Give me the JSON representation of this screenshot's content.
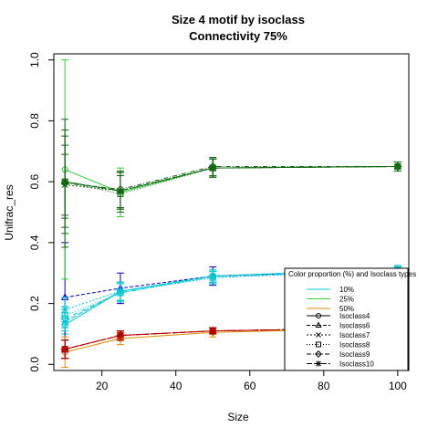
{
  "chart_data": {
    "type": "line",
    "title": "Size 4 motif by isoclass",
    "subtitle": "Connectivity 75%",
    "xlabel": "Size",
    "ylabel": "Unifrac_res",
    "xlim": [
      7,
      103
    ],
    "ylim": [
      -0.02,
      1.02
    ],
    "x_ticks": [
      20,
      40,
      60,
      80,
      100
    ],
    "y_ticks": [
      0.0,
      0.2,
      0.4,
      0.6,
      0.8,
      1.0
    ],
    "x_tick_labels": [
      "20",
      "40",
      "60",
      "80",
      "100"
    ],
    "y_tick_labels": [
      "0.0",
      "0.2",
      "0.4",
      "0.6",
      "0.8",
      "1.0"
    ],
    "x": [
      10,
      25,
      50,
      100
    ],
    "colors": {
      "10%": "#00c8d2",
      "25%": "#22bb22",
      "50%": "#e07000"
    },
    "series": [
      {
        "proportion": "10%",
        "isoclass": "Isoclass4",
        "values": [
          0.13,
          0.24,
          0.29,
          0.31
        ],
        "err": [
          0.03,
          0.03,
          0.02,
          0.01
        ],
        "color": "#00c8d2"
      },
      {
        "proportion": "10%",
        "isoclass": "Isoclass6",
        "values": [
          0.22,
          0.25,
          0.29,
          0.31
        ],
        "err": [
          0.18,
          0.05,
          0.03,
          0.01
        ],
        "color": "#0000cc"
      },
      {
        "proportion": "10%",
        "isoclass": "Isoclass7",
        "values": [
          0.18,
          0.24,
          0.285,
          0.31
        ],
        "err": [
          0.04,
          0.03,
          0.02,
          0.01
        ],
        "color": "#00c8d2"
      },
      {
        "proportion": "10%",
        "isoclass": "Isoclass8",
        "values": [
          0.16,
          0.235,
          0.285,
          0.31
        ],
        "err": [
          0.03,
          0.03,
          0.02,
          0.01
        ],
        "color": "#00c8d2"
      },
      {
        "proportion": "10%",
        "isoclass": "Isoclass9",
        "values": [
          0.15,
          0.235,
          0.29,
          0.31
        ],
        "err": [
          0.03,
          0.03,
          0.02,
          0.01
        ],
        "color": "#00c8d2"
      },
      {
        "proportion": "10%",
        "isoclass": "Isoclass10",
        "values": [
          0.14,
          0.24,
          0.29,
          0.315
        ],
        "err": [
          0.03,
          0.03,
          0.02,
          0.01
        ],
        "color": "#00c8d2"
      },
      {
        "proportion": "25%",
        "isoclass": "Isoclass4",
        "values": [
          0.64,
          0.565,
          0.645,
          0.65
        ],
        "err": [
          0.36,
          0.08,
          0.03,
          0.015
        ],
        "color": "#33cc33"
      },
      {
        "proportion": "25%",
        "isoclass": "Isoclass6",
        "values": [
          0.6,
          0.57,
          0.645,
          0.65
        ],
        "err": [
          0.17,
          0.06,
          0.03,
          0.015
        ],
        "color": "#116611"
      },
      {
        "proportion": "25%",
        "isoclass": "Isoclass7",
        "values": [
          0.59,
          0.57,
          0.645,
          0.65
        ],
        "err": [
          0.1,
          0.06,
          0.03,
          0.015
        ],
        "color": "#116611"
      },
      {
        "proportion": "25%",
        "isoclass": "Isoclass8",
        "values": [
          0.6,
          0.56,
          0.645,
          0.65
        ],
        "err": [
          0.12,
          0.06,
          0.03,
          0.015
        ],
        "color": "#116611"
      },
      {
        "proportion": "25%",
        "isoclass": "Isoclass9",
        "values": [
          0.595,
          0.575,
          0.65,
          0.65
        ],
        "err": [
          0.21,
          0.06,
          0.03,
          0.015
        ],
        "color": "#116611"
      },
      {
        "proportion": "25%",
        "isoclass": "Isoclass10",
        "values": [
          0.6,
          0.57,
          0.645,
          0.65
        ],
        "err": [
          0.15,
          0.06,
          0.03,
          0.015
        ],
        "color": "#116611"
      },
      {
        "proportion": "50%",
        "isoclass": "Isoclass4",
        "values": [
          0.04,
          0.085,
          0.105,
          0.12
        ],
        "err": [
          0.05,
          0.02,
          0.015,
          0.01
        ],
        "color": "#e08a00"
      },
      {
        "proportion": "50%",
        "isoclass": "Isoclass6",
        "values": [
          0.05,
          0.095,
          0.11,
          0.12
        ],
        "err": [
          0.03,
          0.015,
          0.01,
          0.01
        ],
        "color": "#cc0000"
      },
      {
        "proportion": "50%",
        "isoclass": "Isoclass7",
        "values": [
          0.05,
          0.095,
          0.11,
          0.12
        ],
        "err": [
          0.03,
          0.015,
          0.01,
          0.01
        ],
        "color": "#cc0000"
      },
      {
        "proportion": "50%",
        "isoclass": "Isoclass8",
        "values": [
          0.05,
          0.095,
          0.11,
          0.12
        ],
        "err": [
          0.03,
          0.015,
          0.01,
          0.01
        ],
        "color": "#cc0000"
      },
      {
        "proportion": "50%",
        "isoclass": "Isoclass9",
        "values": [
          0.05,
          0.095,
          0.11,
          0.12
        ],
        "err": [
          0.03,
          0.015,
          0.01,
          0.01
        ],
        "color": "#cc0000"
      },
      {
        "proportion": "50%",
        "isoclass": "Isoclass10",
        "values": [
          0.05,
          0.095,
          0.11,
          0.12
        ],
        "err": [
          0.03,
          0.015,
          0.01,
          0.01
        ],
        "color": "#aa0000"
      }
    ],
    "legend": {
      "title": "Color proportion (%) and Isoclass types",
      "position": "bottom-right",
      "colors": [
        {
          "label": "10%",
          "color": "#00c8d2"
        },
        {
          "label": "25%",
          "color": "#33cc33"
        },
        {
          "label": "50%",
          "color": "#e08a00"
        }
      ],
      "types": [
        {
          "label": "Isoclass4",
          "marker": "circle",
          "dash": ""
        },
        {
          "label": "Isoclass6",
          "marker": "triangle",
          "dash": "4,2"
        },
        {
          "label": "Isoclass7",
          "marker": "x",
          "dash": "2,2"
        },
        {
          "label": "Isoclass8",
          "marker": "square",
          "dash": "1,2"
        },
        {
          "label": "Isoclass9",
          "marker": "diamond",
          "dash": "5,2,1,2"
        },
        {
          "label": "Isoclass10",
          "marker": "star",
          "dash": "6,2"
        }
      ]
    }
  }
}
